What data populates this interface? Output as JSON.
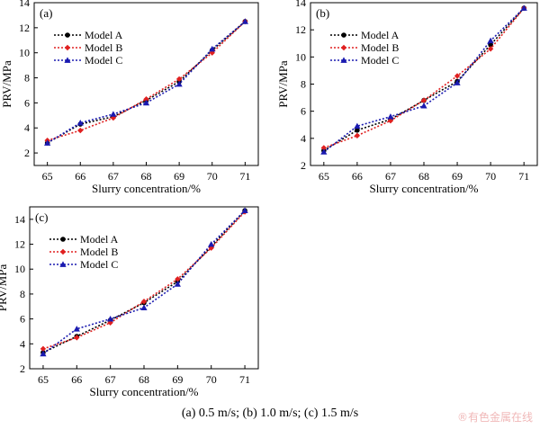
{
  "caption": "(a) 0.5 m/s; (b) 1.0 m/s; (c) 1.5 m/s",
  "watermark": "®有色金属在线",
  "colors": {
    "model_a": "#000000",
    "model_b": "#e02020",
    "model_c": "#1a1ab0"
  },
  "chart_data": [
    {
      "type": "line",
      "panel_label": "(a)",
      "xlabel": "Slurry concentration/%",
      "ylabel": "PRV/MPa",
      "x": [
        65,
        66,
        67,
        68,
        69,
        70,
        71
      ],
      "xlim": [
        64.6,
        71.4
      ],
      "ylim": [
        1,
        14
      ],
      "yticks": [
        2,
        4,
        6,
        8,
        10,
        12,
        14
      ],
      "legend_position": "upper-left",
      "series": [
        {
          "name": "Model A",
          "values": [
            2.8,
            4.3,
            4.9,
            6.2,
            7.7,
            10.2,
            12.5
          ]
        },
        {
          "name": "Model B",
          "values": [
            3.0,
            3.8,
            4.8,
            6.3,
            7.9,
            10.0,
            12.5
          ]
        },
        {
          "name": "Model C",
          "values": [
            2.8,
            4.4,
            5.1,
            6.0,
            7.5,
            10.3,
            12.5
          ]
        }
      ]
    },
    {
      "type": "line",
      "panel_label": "(b)",
      "xlabel": "Slurry concentration/%",
      "ylabel": "PRV/MPa",
      "x": [
        65,
        66,
        67,
        68,
        69,
        70,
        71
      ],
      "xlim": [
        64.6,
        71.4
      ],
      "ylim": [
        2,
        14
      ],
      "yticks": [
        2,
        4,
        6,
        8,
        10,
        12,
        14
      ],
      "legend_position": "upper-left",
      "series": [
        {
          "name": "Model A",
          "values": [
            3.1,
            4.6,
            5.4,
            6.8,
            8.2,
            10.9,
            13.6
          ]
        },
        {
          "name": "Model B",
          "values": [
            3.3,
            4.2,
            5.3,
            6.8,
            8.6,
            10.6,
            13.6
          ]
        },
        {
          "name": "Model C",
          "values": [
            3.0,
            4.9,
            5.6,
            6.4,
            8.1,
            11.2,
            13.6
          ]
        }
      ]
    },
    {
      "type": "line",
      "panel_label": "(c)",
      "xlabel": "Slurry concentration/%",
      "ylabel": "PRV/MPa",
      "x": [
        65,
        66,
        67,
        68,
        69,
        70,
        71
      ],
      "xlim": [
        64.6,
        71.4
      ],
      "ylim": [
        2,
        15
      ],
      "yticks": [
        2,
        4,
        6,
        8,
        10,
        12,
        14
      ],
      "legend_position": "upper-left",
      "series": [
        {
          "name": "Model A",
          "values": [
            3.3,
            4.6,
            5.9,
            7.3,
            9.0,
            11.8,
            14.7
          ]
        },
        {
          "name": "Model B",
          "values": [
            3.6,
            4.5,
            5.7,
            7.4,
            9.2,
            11.7,
            14.6
          ]
        },
        {
          "name": "Model C",
          "values": [
            3.2,
            5.2,
            6.0,
            6.9,
            8.8,
            12.0,
            14.7
          ]
        }
      ]
    }
  ]
}
